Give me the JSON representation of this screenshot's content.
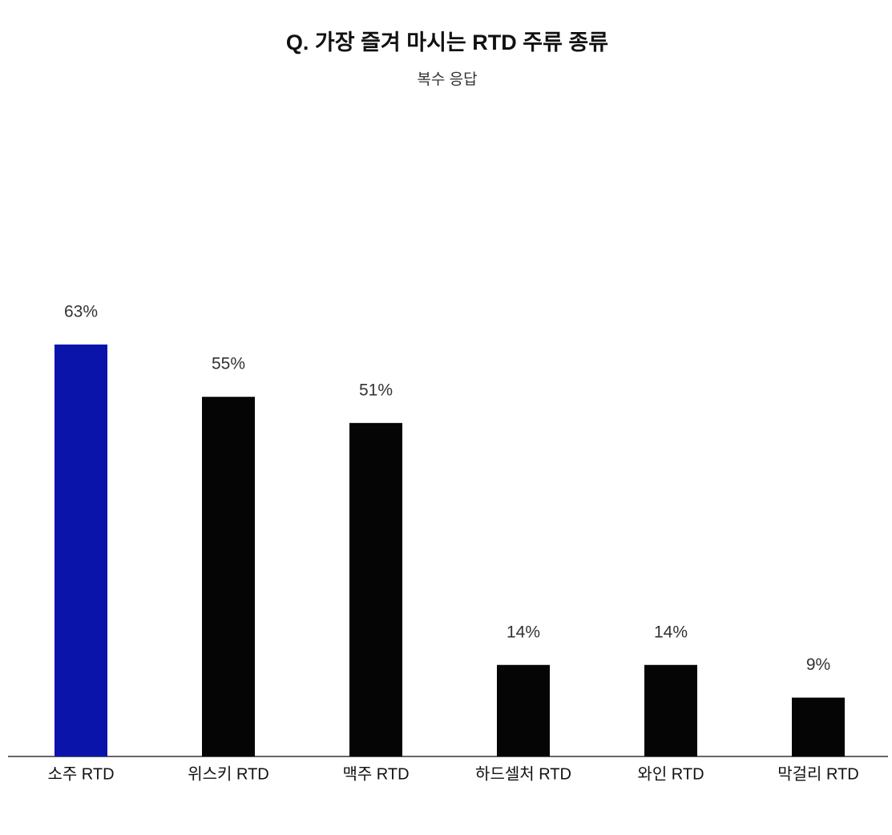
{
  "chart_data": {
    "type": "bar",
    "title": "Q. 가장 즐겨 마시는 RTD 주류 종류",
    "subtitle": "복수 응답",
    "categories": [
      "소주 RTD",
      "위스키 RTD",
      "맥주 RTD",
      "하드셀처 RTD",
      "와인 RTD",
      "막걸리 RTD"
    ],
    "values": [
      63,
      55,
      51,
      14,
      14,
      9
    ],
    "value_labels": [
      "63%",
      "55%",
      "51%",
      "14%",
      "14%",
      "9%"
    ],
    "colors": [
      "#0a14aa",
      "#050505",
      "#050505",
      "#050505",
      "#050505",
      "#050505"
    ]
  }
}
